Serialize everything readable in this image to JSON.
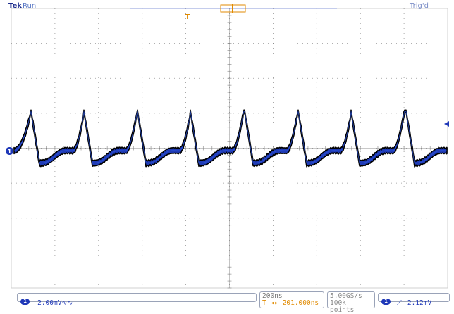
{
  "header": {
    "brand": "Tek",
    "run_state": "Run",
    "trigger_status": "Trig'd"
  },
  "markers": {
    "trigger_position_symbol": "T",
    "channel_label": "1"
  },
  "status_bar": {
    "channel": {
      "number": "1",
      "scale": "2.00mV",
      "bandwidth_symbol": "∿∿"
    },
    "timebase": {
      "scale": "200ns",
      "delay_symbol": "T",
      "delay": "201.000ns"
    },
    "acquisition": {
      "sample_rate": "5.00GS/s",
      "record_length": "100k points"
    },
    "trigger": {
      "source": "1",
      "slope_symbol": "⟋",
      "level": "2.12mV"
    }
  },
  "colors": {
    "trace_fill": "#1f3bb5",
    "trace_edge": "#000000",
    "grid": "#7a7a7a",
    "highlight": "#e08a00",
    "text": "#3a3a8c"
  }
}
